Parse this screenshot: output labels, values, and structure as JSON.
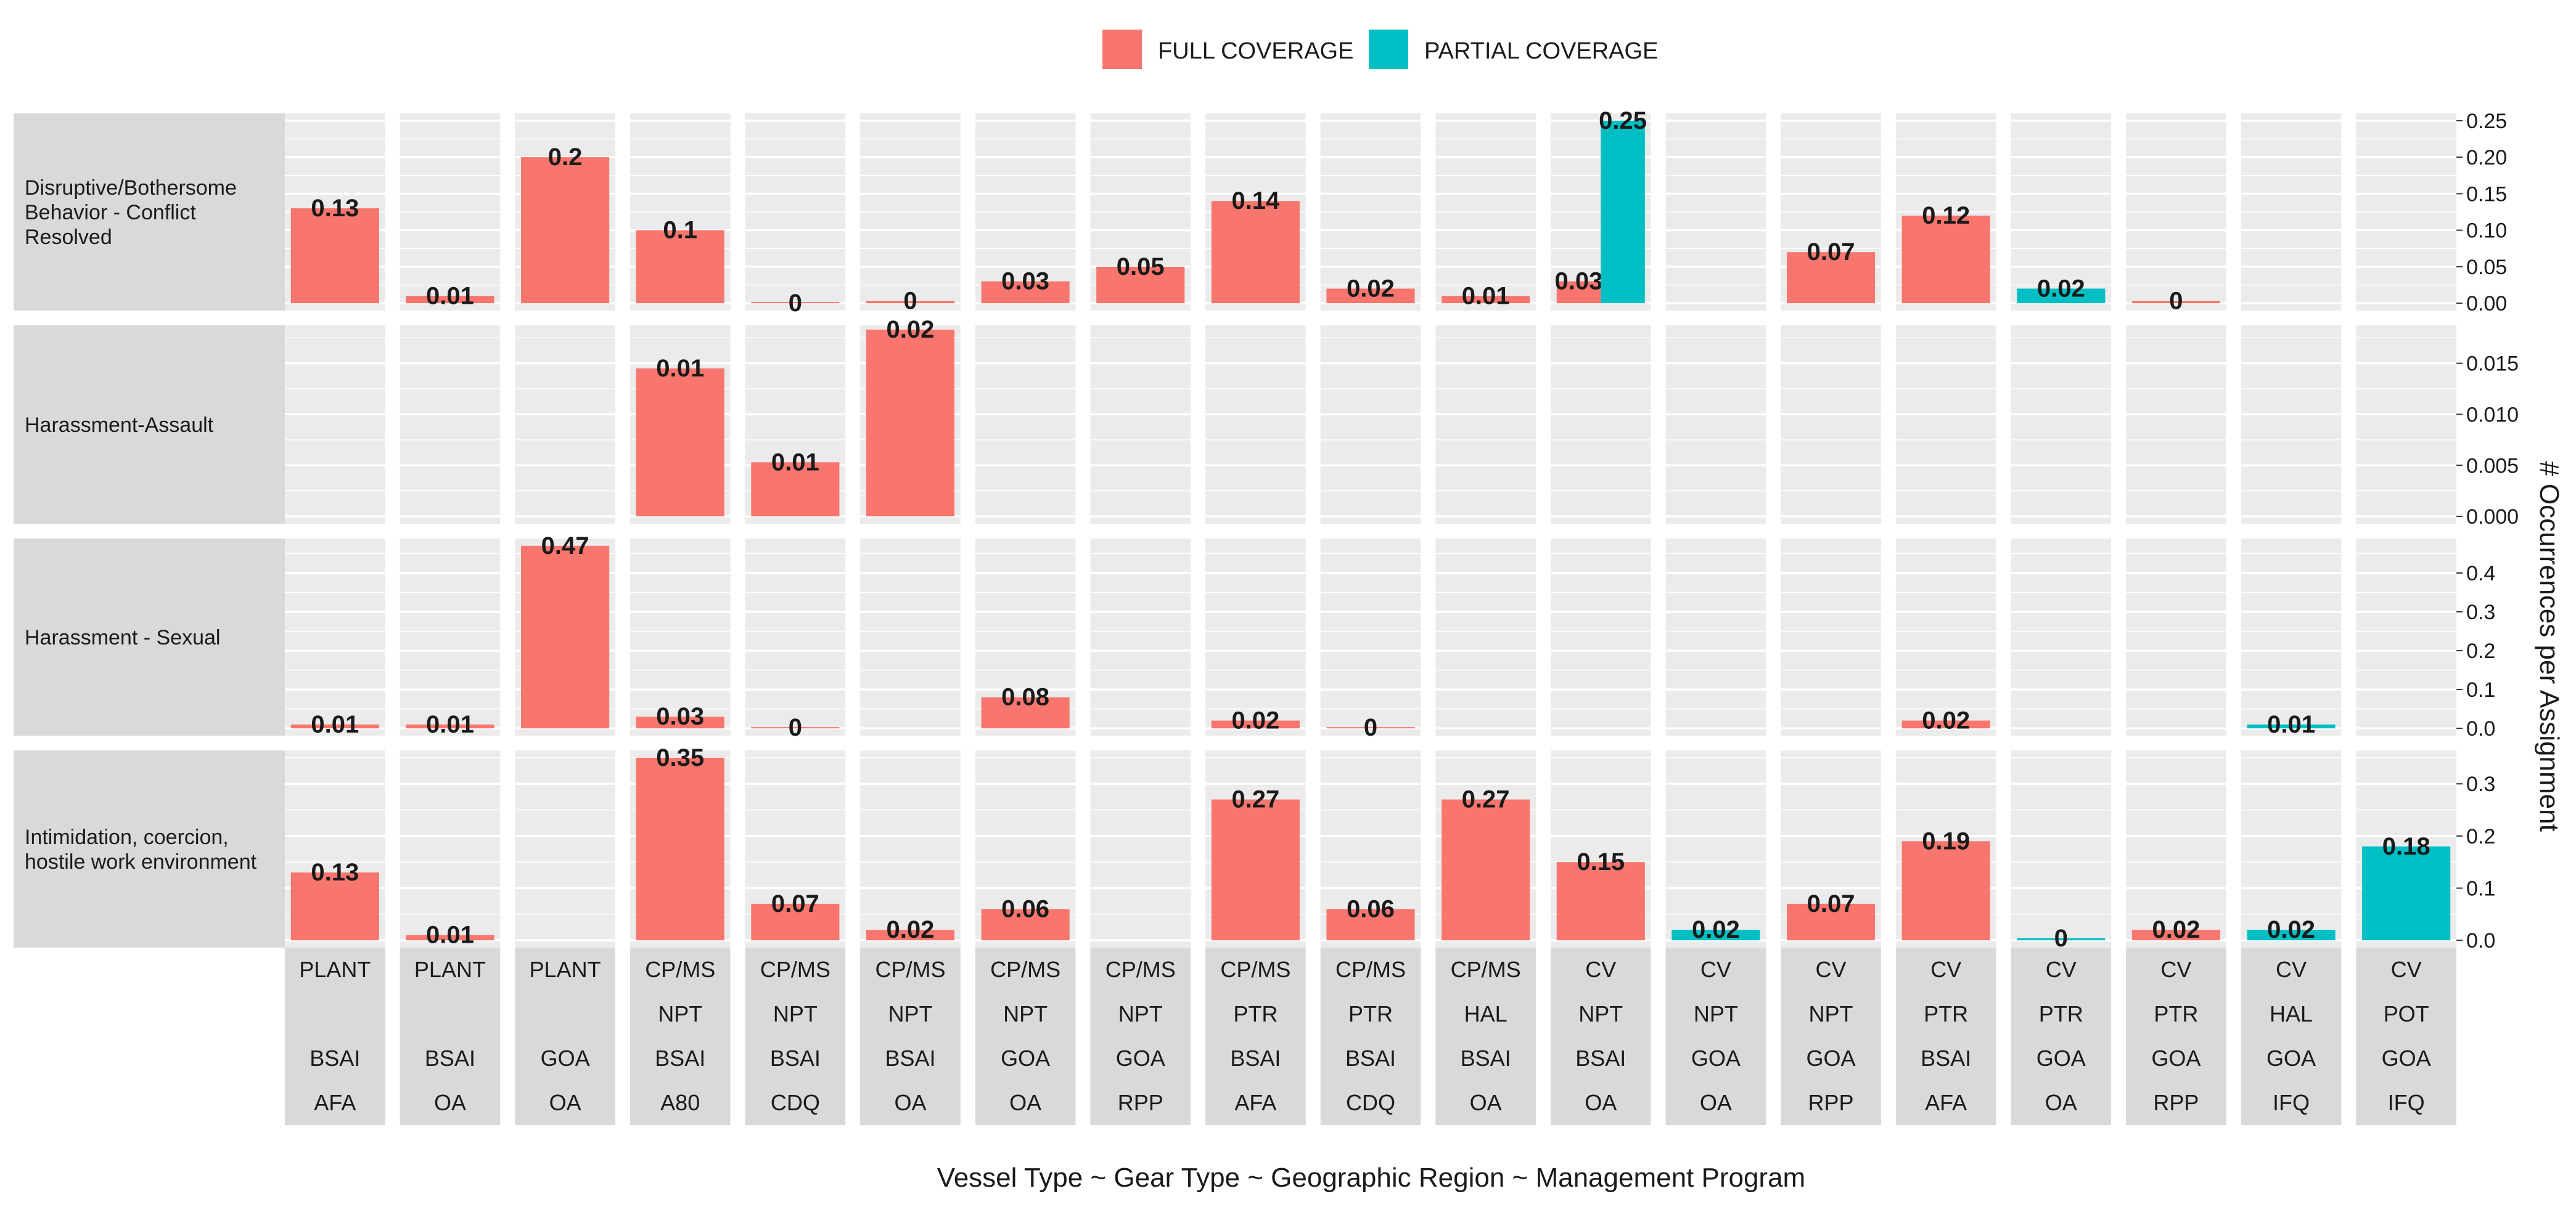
{
  "legend": {
    "items": [
      {
        "label": "FULL COVERAGE",
        "color": "#F8766D"
      },
      {
        "label": "PARTIAL COVERAGE",
        "color": "#00BFC4"
      }
    ]
  },
  "xlabel": "Vessel Type ~ Gear Type ~ Geographic Region ~ Management Program",
  "ylabel": "# Occurrences per Assignment",
  "chart_data": {
    "type": "bar",
    "layout": "faceted grid (rows = incident type, columns = vessel/gear/region/program)",
    "legend_position": "top",
    "grid": true,
    "x_facets": [
      [
        "PLANT",
        "",
        "BSAI",
        "AFA"
      ],
      [
        "PLANT",
        "",
        "BSAI",
        "OA"
      ],
      [
        "PLANT",
        "",
        "GOA",
        "OA"
      ],
      [
        "CP/MS",
        "NPT",
        "BSAI",
        "A80"
      ],
      [
        "CP/MS",
        "NPT",
        "BSAI",
        "CDQ"
      ],
      [
        "CP/MS",
        "NPT",
        "BSAI",
        "OA"
      ],
      [
        "CP/MS",
        "NPT",
        "GOA",
        "OA"
      ],
      [
        "CP/MS",
        "NPT",
        "GOA",
        "RPP"
      ],
      [
        "CP/MS",
        "PTR",
        "BSAI",
        "AFA"
      ],
      [
        "CP/MS",
        "PTR",
        "BSAI",
        "CDQ"
      ],
      [
        "CP/MS",
        "HAL",
        "BSAI",
        "OA"
      ],
      [
        "CV",
        "NPT",
        "BSAI",
        "OA"
      ],
      [
        "CV",
        "NPT",
        "GOA",
        "OA"
      ],
      [
        "CV",
        "NPT",
        "GOA",
        "RPP"
      ],
      [
        "CV",
        "PTR",
        "BSAI",
        "AFA"
      ],
      [
        "CV",
        "PTR",
        "GOA",
        "OA"
      ],
      [
        "CV",
        "PTR",
        "GOA",
        "RPP"
      ],
      [
        "CV",
        "HAL",
        "GOA",
        "IFQ"
      ],
      [
        "CV",
        "POT",
        "GOA",
        "IFQ"
      ]
    ],
    "series_names": [
      "FULL COVERAGE",
      "PARTIAL COVERAGE"
    ],
    "panels": [
      {
        "title": "Disruptive/Bothersome Behavior - Conflict Resolved",
        "title_lines": [
          "Disruptive/Bothersome",
          "Behavior - Conflict",
          "Resolved"
        ],
        "ylim": [
          0,
          0.25
        ],
        "ticks": [
          0.0,
          0.05,
          0.1,
          0.15,
          0.2,
          0.25
        ],
        "tick_labels": [
          "0.00",
          "0.05",
          "0.10",
          "0.15",
          "0.20",
          "0.25"
        ],
        "bars": [
          {
            "col": 0,
            "series": "FULL COVERAGE",
            "value": 0.13,
            "label": "0.13"
          },
          {
            "col": 1,
            "series": "FULL COVERAGE",
            "value": 0.01,
            "label": "0.01"
          },
          {
            "col": 2,
            "series": "FULL COVERAGE",
            "value": 0.2,
            "label": "0.2"
          },
          {
            "col": 3,
            "series": "FULL COVERAGE",
            "value": 0.1,
            "label": "0.1"
          },
          {
            "col": 4,
            "series": "FULL COVERAGE",
            "value": 0.0,
            "label": "0"
          },
          {
            "col": 5,
            "series": "FULL COVERAGE",
            "value": 0.003,
            "label": "0"
          },
          {
            "col": 6,
            "series": "FULL COVERAGE",
            "value": 0.03,
            "label": "0.03"
          },
          {
            "col": 7,
            "series": "FULL COVERAGE",
            "value": 0.05,
            "label": "0.05"
          },
          {
            "col": 8,
            "series": "FULL COVERAGE",
            "value": 0.14,
            "label": "0.14"
          },
          {
            "col": 9,
            "series": "FULL COVERAGE",
            "value": 0.02,
            "label": "0.02"
          },
          {
            "col": 10,
            "series": "FULL COVERAGE",
            "value": 0.01,
            "label": "0.01"
          },
          {
            "col": 11,
            "series": "FULL COVERAGE",
            "value": 0.03,
            "label": "0.03",
            "dodge": true
          },
          {
            "col": 11,
            "series": "PARTIAL COVERAGE",
            "value": 0.25,
            "label": "0.25",
            "dodge": true
          },
          {
            "col": 13,
            "series": "FULL COVERAGE",
            "value": 0.07,
            "label": "0.07"
          },
          {
            "col": 14,
            "series": "FULL COVERAGE",
            "value": 0.12,
            "label": "0.12"
          },
          {
            "col": 15,
            "series": "PARTIAL COVERAGE",
            "value": 0.02,
            "label": "0.02"
          },
          {
            "col": 16,
            "series": "FULL COVERAGE",
            "value": 0.003,
            "label": "0"
          }
        ]
      },
      {
        "title": "Harassment-Assault",
        "title_lines": [
          "Harassment-Assault"
        ],
        "ylim": [
          0,
          0.018
        ],
        "ticks": [
          0.0,
          0.005,
          0.01,
          0.015
        ],
        "tick_labels": [
          "0.000",
          "0.005",
          "0.010",
          "0.015"
        ],
        "bars": [
          {
            "col": 3,
            "series": "FULL COVERAGE",
            "value": 0.0145,
            "label": "0.01"
          },
          {
            "col": 4,
            "series": "FULL COVERAGE",
            "value": 0.0053,
            "label": "0.01"
          },
          {
            "col": 5,
            "series": "FULL COVERAGE",
            "value": 0.0183,
            "label": "0.02"
          }
        ]
      },
      {
        "title": "Harassment - Sexual",
        "title_lines": [
          "Harassment - Sexual"
        ],
        "ylim": [
          0,
          0.47
        ],
        "ticks": [
          0.0,
          0.1,
          0.2,
          0.3,
          0.4
        ],
        "tick_labels": [
          "0.0",
          "0.1",
          "0.2",
          "0.3",
          "0.4"
        ],
        "bars": [
          {
            "col": 0,
            "series": "FULL COVERAGE",
            "value": 0.01,
            "label": "0.01"
          },
          {
            "col": 1,
            "series": "FULL COVERAGE",
            "value": 0.01,
            "label": "0.01"
          },
          {
            "col": 2,
            "series": "FULL COVERAGE",
            "value": 0.47,
            "label": "0.47"
          },
          {
            "col": 3,
            "series": "FULL COVERAGE",
            "value": 0.03,
            "label": "0.03"
          },
          {
            "col": 4,
            "series": "FULL COVERAGE",
            "value": 0.002,
            "label": "0"
          },
          {
            "col": 6,
            "series": "FULL COVERAGE",
            "value": 0.08,
            "label": "0.08"
          },
          {
            "col": 8,
            "series": "FULL COVERAGE",
            "value": 0.02,
            "label": "0.02"
          },
          {
            "col": 9,
            "series": "FULL COVERAGE",
            "value": 0.002,
            "label": "0"
          },
          {
            "col": 14,
            "series": "FULL COVERAGE",
            "value": 0.02,
            "label": "0.02"
          },
          {
            "col": 17,
            "series": "PARTIAL COVERAGE",
            "value": 0.01,
            "label": "0.01"
          }
        ]
      },
      {
        "title": "Intimidation, coercion, hostile work environment",
        "title_lines": [
          "Intimidation, coercion,",
          "hostile work environment"
        ],
        "ylim": [
          0,
          0.35
        ],
        "ticks": [
          0.0,
          0.1,
          0.2,
          0.3
        ],
        "tick_labels": [
          "0.0",
          "0.1",
          "0.2",
          "0.3"
        ],
        "bars": [
          {
            "col": 0,
            "series": "FULL COVERAGE",
            "value": 0.13,
            "label": "0.13"
          },
          {
            "col": 1,
            "series": "FULL COVERAGE",
            "value": 0.01,
            "label": "0.01"
          },
          {
            "col": 3,
            "series": "FULL COVERAGE",
            "value": 0.35,
            "label": "0.35"
          },
          {
            "col": 4,
            "series": "FULL COVERAGE",
            "value": 0.07,
            "label": "0.07"
          },
          {
            "col": 5,
            "series": "FULL COVERAGE",
            "value": 0.02,
            "label": "0.02"
          },
          {
            "col": 6,
            "series": "FULL COVERAGE",
            "value": 0.06,
            "label": "0.06"
          },
          {
            "col": 8,
            "series": "FULL COVERAGE",
            "value": 0.27,
            "label": "0.27"
          },
          {
            "col": 9,
            "series": "FULL COVERAGE",
            "value": 0.06,
            "label": "0.06"
          },
          {
            "col": 10,
            "series": "FULL COVERAGE",
            "value": 0.27,
            "label": "0.27"
          },
          {
            "col": 11,
            "series": "FULL COVERAGE",
            "value": 0.15,
            "label": "0.15"
          },
          {
            "col": 12,
            "series": "PARTIAL COVERAGE",
            "value": 0.02,
            "label": "0.02"
          },
          {
            "col": 13,
            "series": "FULL COVERAGE",
            "value": 0.07,
            "label": "0.07"
          },
          {
            "col": 14,
            "series": "FULL COVERAGE",
            "value": 0.19,
            "label": "0.19"
          },
          {
            "col": 15,
            "series": "PARTIAL COVERAGE",
            "value": 0.004,
            "label": "0"
          },
          {
            "col": 16,
            "series": "FULL COVERAGE",
            "value": 0.02,
            "label": "0.02"
          },
          {
            "col": 17,
            "series": "PARTIAL COVERAGE",
            "value": 0.02,
            "label": "0.02"
          },
          {
            "col": 18,
            "series": "PARTIAL COVERAGE",
            "value": 0.18,
            "label": "0.18"
          }
        ]
      }
    ]
  }
}
